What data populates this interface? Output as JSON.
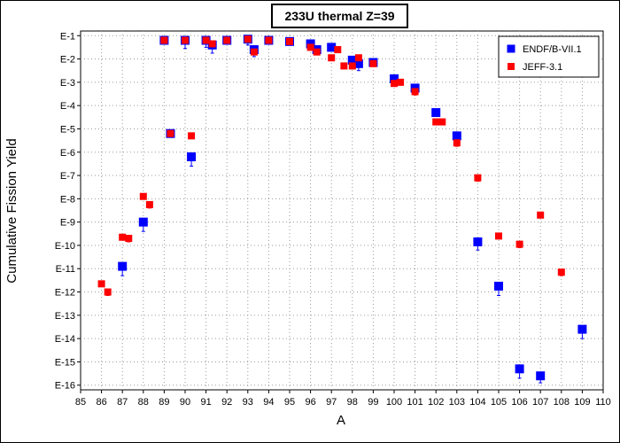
{
  "chart_data": {
    "type": "scatter",
    "title": "233U thermal Z=39",
    "xlabel": "A",
    "ylabel": "Cumulative Fission Yield",
    "xlim": [
      85,
      110
    ],
    "x_ticks": [
      85,
      86,
      87,
      88,
      89,
      90,
      91,
      92,
      93,
      94,
      95,
      96,
      97,
      98,
      99,
      100,
      101,
      102,
      103,
      104,
      105,
      106,
      107,
      108,
      109,
      110
    ],
    "y_scale": "log",
    "ylim_exponent": [
      -16,
      -1
    ],
    "y_tick_exponents": [
      -1,
      -2,
      -3,
      -4,
      -5,
      -6,
      -7,
      -8,
      -9,
      -10,
      -11,
      -12,
      -13,
      -14,
      -15,
      -16
    ],
    "y_tick_labels": [
      "E-1",
      "E-2",
      "E-3",
      "E-4",
      "E-5",
      "E-6",
      "E-7",
      "E-8",
      "E-9",
      "E-10",
      "E-11",
      "E-12",
      "E-13",
      "E-14",
      "E-15",
      "E-16"
    ],
    "grid": true,
    "legend_position": "top-right",
    "series": [
      {
        "name": "ENDF/B-VII.1",
        "color": "#0000ff",
        "marker": "square",
        "points": [
          {
            "x": 87,
            "log10y": -10.9,
            "err": 0.4
          },
          {
            "x": 88,
            "log10y": -9.0,
            "err": 0.4
          },
          {
            "x": 89,
            "log10y": -1.2,
            "err": 0.1
          },
          {
            "x": 89.3,
            "log10y": -5.2,
            "err": 0.05
          },
          {
            "x": 90,
            "log10y": -1.2,
            "err": 0.35
          },
          {
            "x": 90.3,
            "log10y": -6.2,
            "err": 0.4
          },
          {
            "x": 91,
            "log10y": -1.2,
            "err": 0.3
          },
          {
            "x": 91.3,
            "log10y": -1.4,
            "err": 0.35
          },
          {
            "x": 92,
            "log10y": -1.2,
            "err": 0.1
          },
          {
            "x": 93,
            "log10y": -1.15,
            "err": 0.25
          },
          {
            "x": 93.3,
            "log10y": -1.6,
            "err": 0.3
          },
          {
            "x": 94,
            "log10y": -1.2,
            "err": 0.1
          },
          {
            "x": 95,
            "log10y": -1.25,
            "err": 0.1
          },
          {
            "x": 96,
            "log10y": -1.35,
            "err": 0.1
          },
          {
            "x": 96.3,
            "log10y": -1.6,
            "err": 0.1
          },
          {
            "x": 97,
            "log10y": -1.5,
            "err": 0.1
          },
          {
            "x": 98,
            "log10y": -2.05,
            "err": 0.25
          },
          {
            "x": 98.3,
            "log10y": -2.2,
            "err": 0.3
          },
          {
            "x": 99,
            "log10y": -2.15,
            "err": 0.15
          },
          {
            "x": 100,
            "log10y": -2.85,
            "err": 0.25
          },
          {
            "x": 101,
            "log10y": -3.25,
            "err": 0.2
          },
          {
            "x": 102,
            "log10y": -4.3,
            "err": 0.15
          },
          {
            "x": 103,
            "log10y": -5.3,
            "err": 0.15
          },
          {
            "x": 104,
            "log10y": -9.85,
            "err": 0.35
          },
          {
            "x": 105,
            "log10y": -11.75,
            "err": 0.4
          },
          {
            "x": 106,
            "log10y": -15.3,
            "err": 0.4
          },
          {
            "x": 107,
            "log10y": -15.6,
            "err": 0.3
          },
          {
            "x": 109,
            "log10y": -13.6,
            "err": 0.4
          }
        ]
      },
      {
        "name": "JEFF-3.1",
        "color": "#ff0000",
        "marker": "square",
        "points": [
          {
            "x": 86,
            "log10y": -11.65,
            "err": 0.1
          },
          {
            "x": 86.3,
            "log10y": -12.0,
            "err": 0.15
          },
          {
            "x": 87,
            "log10y": -9.65,
            "err": 0.1
          },
          {
            "x": 87.3,
            "log10y": -9.7,
            "err": 0.15
          },
          {
            "x": 88,
            "log10y": -7.9,
            "err": 0.1
          },
          {
            "x": 88.3,
            "log10y": -8.25,
            "err": 0.15
          },
          {
            "x": 89,
            "log10y": -1.2,
            "err": 0.05
          },
          {
            "x": 89.3,
            "log10y": -5.2,
            "err": 0.05
          },
          {
            "x": 90,
            "log10y": -1.2,
            "err": 0.05
          },
          {
            "x": 90.3,
            "log10y": -5.3,
            "err": 0.1
          },
          {
            "x": 91,
            "log10y": -1.2,
            "err": 0.05
          },
          {
            "x": 91.3,
            "log10y": -1.35,
            "err": 0.05
          },
          {
            "x": 92,
            "log10y": -1.2,
            "err": 0.05
          },
          {
            "x": 93,
            "log10y": -1.15,
            "err": 0.05
          },
          {
            "x": 93.3,
            "log10y": -1.7,
            "err": 0.1
          },
          {
            "x": 94,
            "log10y": -1.2,
            "err": 0.05
          },
          {
            "x": 95,
            "log10y": -1.25,
            "err": 0.05
          },
          {
            "x": 96,
            "log10y": -1.5,
            "err": 0.05
          },
          {
            "x": 96.3,
            "log10y": -1.7,
            "err": 0.05
          },
          {
            "x": 97,
            "log10y": -1.95,
            "err": 0.05
          },
          {
            "x": 97.3,
            "log10y": -1.6,
            "err": 0.05
          },
          {
            "x": 97.6,
            "log10y": -2.3,
            "err": 0.05
          },
          {
            "x": 98,
            "log10y": -2.3,
            "err": 0.05
          },
          {
            "x": 98.3,
            "log10y": -1.95,
            "err": 0.1
          },
          {
            "x": 99,
            "log10y": -2.2,
            "err": 0.05
          },
          {
            "x": 100,
            "log10y": -3.05,
            "err": 0.1
          },
          {
            "x": 100.3,
            "log10y": -3.0,
            "err": 0.05
          },
          {
            "x": 101,
            "log10y": -3.4,
            "err": 0.15
          },
          {
            "x": 102,
            "log10y": -4.7,
            "err": 0.1
          },
          {
            "x": 102.3,
            "log10y": -4.7,
            "err": 0.1
          },
          {
            "x": 103,
            "log10y": -5.6,
            "err": 0.15
          },
          {
            "x": 104,
            "log10y": -7.1,
            "err": 0.15
          },
          {
            "x": 105,
            "log10y": -9.6,
            "err": 0.1
          },
          {
            "x": 106,
            "log10y": -9.95,
            "err": 0.15
          },
          {
            "x": 107,
            "log10y": -8.7,
            "err": 0.1
          },
          {
            "x": 108,
            "log10y": -11.15,
            "err": 0.15
          }
        ]
      }
    ]
  }
}
